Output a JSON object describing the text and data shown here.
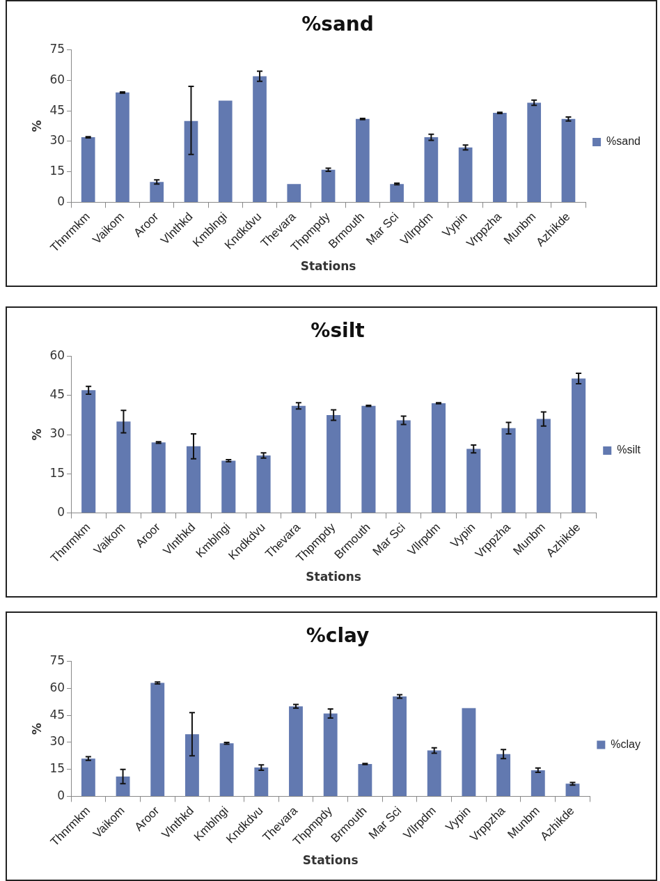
{
  "chart_data": [
    {
      "type": "bar",
      "title": "%sand",
      "xlabel": "Stations",
      "ylabel": "%",
      "categories": [
        "Thnrmkm",
        "Vaikom",
        "Aroor",
        "Vlnthkd",
        "Kmblngi",
        "Kndkdvu",
        "Thevara",
        "Thpmpdy",
        "Brmouth",
        "Mar Sci",
        "Vllrpdm",
        "Vypin",
        "Vrppzha",
        "Munbm",
        "Azhikde"
      ],
      "series": [
        {
          "name": "%sand",
          "color": "#6279b0",
          "values": [
            32,
            54,
            10,
            40,
            50,
            62,
            9,
            16,
            41,
            9,
            32,
            27,
            44,
            49,
            41
          ],
          "errors": [
            0.3,
            0.3,
            1,
            [
              23.5,
              57
            ],
            null,
            2.5,
            null,
            0.8,
            0.3,
            0.4,
            1.5,
            1.2,
            0.3,
            1.3,
            1
          ]
        }
      ],
      "ylim": [
        0,
        75
      ],
      "yticks": [
        0,
        15,
        30,
        45,
        60,
        75
      ],
      "grid": false,
      "legend": "right"
    },
    {
      "type": "bar",
      "title": "%silt",
      "xlabel": "Stations",
      "ylabel": "%",
      "categories": [
        "Thnrmkm",
        "Vaikom",
        "Aroor",
        "Vlnthkd",
        "Kmblngi",
        "Kndkdvu",
        "Thevara",
        "Thpmpdy",
        "Brmouth",
        "Mar Sci",
        "Vllrpdm",
        "Vypin",
        "Vrppzha",
        "Munbm",
        "Azhikde"
      ],
      "series": [
        {
          "name": "%silt",
          "color": "#6279b0",
          "values": [
            47,
            35,
            27,
            25.5,
            20,
            22,
            41,
            37.5,
            41,
            35.5,
            42,
            24.5,
            32.5,
            36,
            51.5
          ],
          "errors": [
            1.5,
            4.3,
            0.3,
            4.8,
            0.4,
            1,
            1.2,
            2,
            0.2,
            1.6,
            0.2,
            1.5,
            2.2,
            2.7,
            2
          ]
        }
      ],
      "ylim": [
        0,
        60
      ],
      "yticks": [
        0,
        15,
        30,
        45,
        60
      ],
      "grid": false,
      "legend": "right"
    },
    {
      "type": "bar",
      "title": "%clay",
      "xlabel": "Stations",
      "ylabel": "%",
      "categories": [
        "Thnrmkm",
        "Vaikom",
        "Aroor",
        "Vlnthkd",
        "Kmblngi",
        "Kndkdvu",
        "Thevara",
        "Thpmpdy",
        "Brmouth",
        "Mar Sci",
        "Vllrpdm",
        "Vypin",
        "Vrppzha",
        "Munbm",
        "Azhikde"
      ],
      "series": [
        {
          "name": "%clay",
          "color": "#6279b0",
          "values": [
            21,
            11,
            63,
            34.5,
            29.5,
            16,
            50,
            46,
            18,
            55.5,
            25.5,
            49,
            23.5,
            14.5,
            7
          ],
          "errors": [
            1,
            4,
            0.5,
            12,
            0.5,
            1.5,
            1,
            2.5,
            0.3,
            1,
            1.5,
            null,
            2.5,
            1.2,
            0.7
          ]
        }
      ],
      "ylim": [
        0,
        75
      ],
      "yticks": [
        0,
        15,
        30,
        45,
        60,
        75
      ],
      "grid": false,
      "legend": "right"
    }
  ]
}
